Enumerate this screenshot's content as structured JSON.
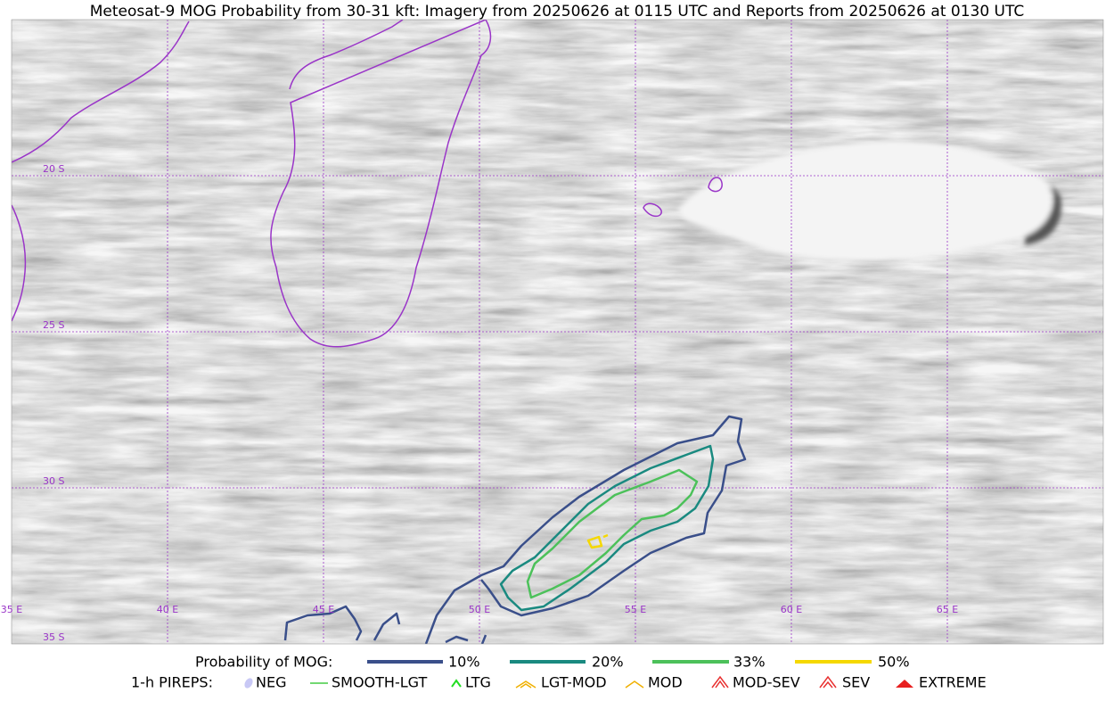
{
  "title": "Meteosat-9 MOG Probability from 30-31 kft: Imagery from 20250626 at 0115 UTC and Reports from 20250626 at 0130 UTC",
  "map": {
    "lat_labels": [
      "20 S",
      "25 S",
      "30 S",
      "35 S"
    ],
    "lon_labels": [
      "35 E",
      "40 E",
      "45 E",
      "50 E",
      "55 E",
      "60 E",
      "65 E"
    ]
  },
  "legend": {
    "probability_title": "Probability of MOG:",
    "probability_levels": [
      "10%",
      "20%",
      "33%",
      "50%"
    ],
    "pireps_title": "1-h PIREPS:",
    "pireps": [
      "NEG",
      "SMOOTH-LGT",
      "LTG",
      "LGT-MOD",
      "MOD",
      "MOD-SEV",
      "SEV",
      "EXTREME"
    ]
  }
}
